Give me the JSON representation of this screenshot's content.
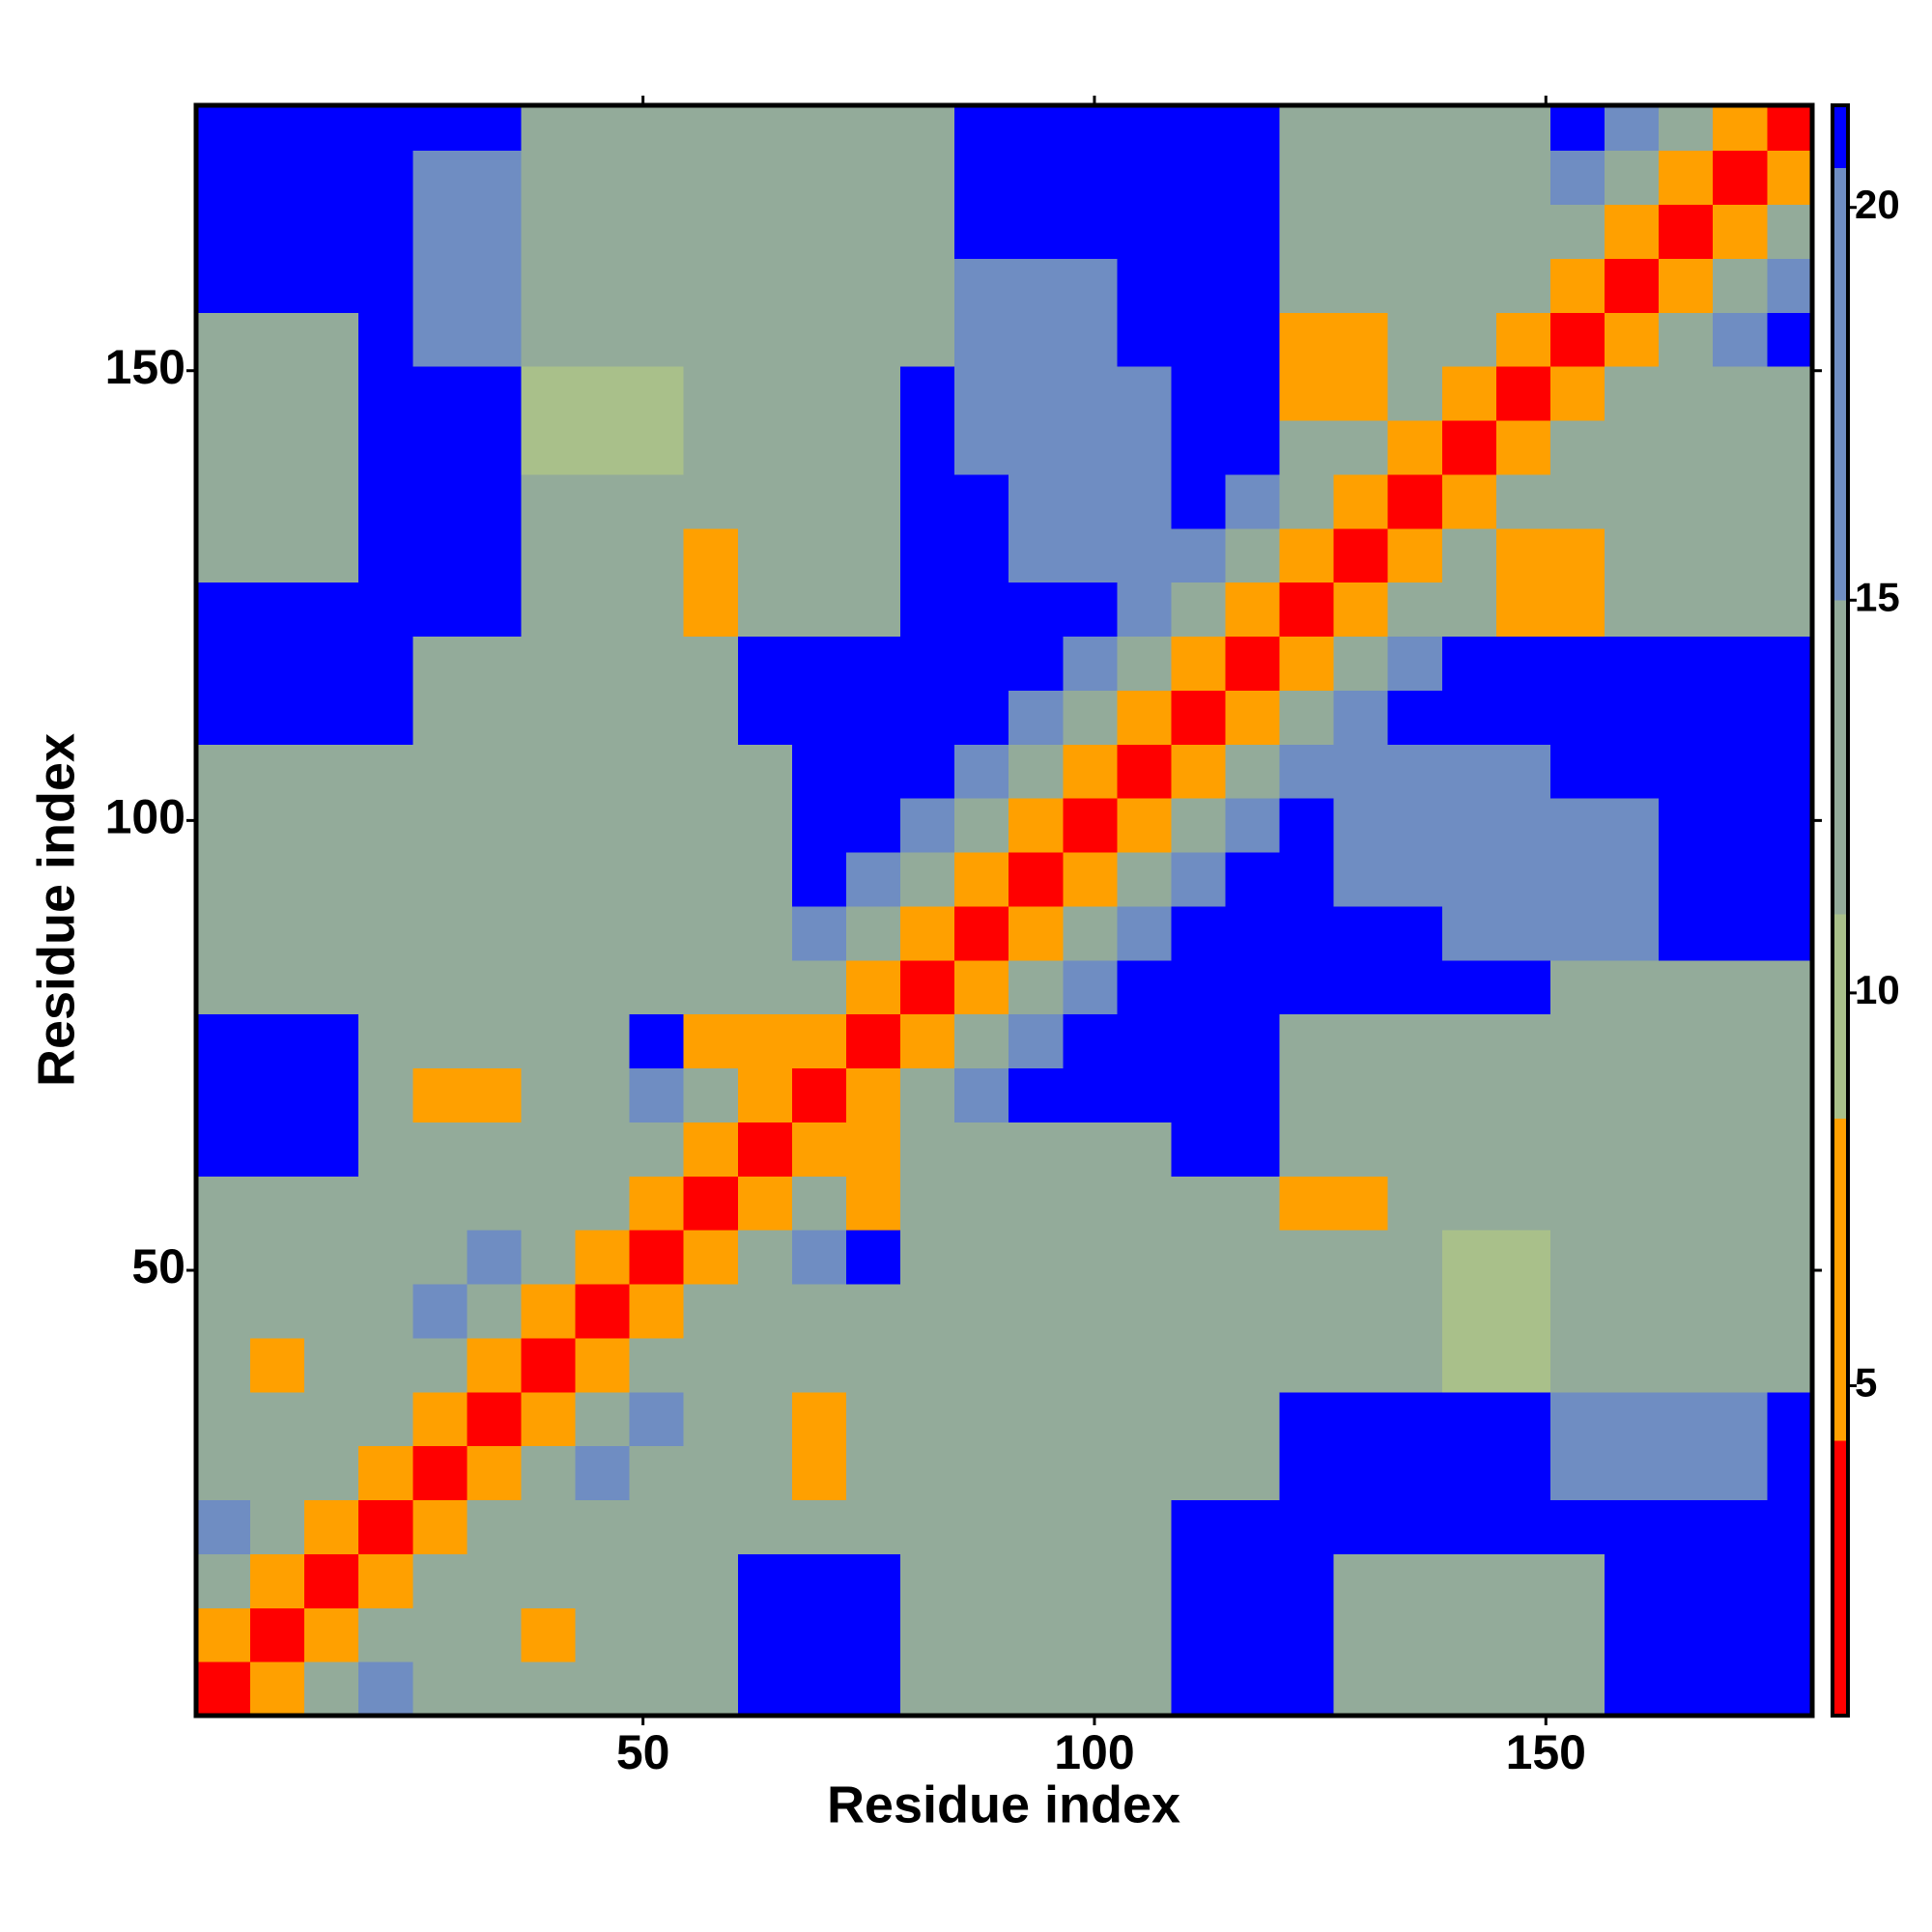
{
  "chart_data": {
    "type": "heatmap",
    "x_label": "Residue index",
    "y_label": "Residue index",
    "x": [
      3.5,
      9.5,
      15.5,
      21.5,
      27.5,
      33.5,
      39.5,
      45.5,
      51.5,
      57.5,
      63.5,
      69.5,
      75.5,
      81.5,
      87.5,
      93.5,
      99.5,
      105.5,
      111.5,
      117.5,
      123.5,
      129.5,
      135.5,
      141.5,
      147.5,
      153.5,
      159.5,
      165.5,
      171.5,
      177.5
    ],
    "y": [
      3.5,
      9.5,
      15.5,
      21.5,
      27.5,
      33.5,
      39.5,
      45.5,
      51.5,
      57.5,
      63.5,
      69.5,
      75.5,
      81.5,
      87.5,
      93.5,
      99.5,
      105.5,
      111.5,
      117.5,
      123.5,
      129.5,
      135.5,
      141.5,
      147.5,
      153.5,
      159.5,
      165.5,
      171.5,
      177.5
    ],
    "z": [
      [
        2,
        6,
        12,
        17,
        14,
        14,
        14,
        14,
        14,
        14,
        21,
        21,
        21,
        15,
        15,
        15,
        15,
        15,
        21,
        21,
        21,
        15,
        15,
        15,
        15,
        15,
        21,
        21,
        21,
        21
      ],
      [
        6,
        2,
        6,
        12,
        14,
        14,
        8,
        14,
        14,
        14,
        21,
        21,
        21,
        15,
        15,
        15,
        15,
        15,
        21,
        21,
        21,
        15,
        15,
        15,
        15,
        15,
        21,
        21,
        21,
        21
      ],
      [
        12,
        6,
        2,
        6,
        12,
        14,
        14,
        14,
        14,
        14,
        21,
        21,
        21,
        15,
        15,
        15,
        15,
        15,
        21,
        21,
        21,
        15,
        15,
        15,
        15,
        15,
        21,
        21,
        21,
        21
      ],
      [
        17,
        12,
        6,
        2,
        6,
        12,
        14,
        14,
        14,
        14,
        14,
        14,
        14,
        15,
        15,
        15,
        15,
        15,
        21,
        21,
        21,
        21,
        21,
        21,
        21,
        21,
        21,
        21,
        21,
        21
      ],
      [
        14,
        14,
        12,
        6,
        2,
        6,
        12,
        17,
        14,
        13,
        13,
        7,
        13,
        15,
        15,
        15,
        15,
        15,
        15,
        15,
        21,
        21,
        21,
        21,
        21,
        18,
        18,
        18,
        18,
        21
      ],
      [
        14,
        14,
        14,
        12,
        6,
        2,
        6,
        12,
        17,
        13,
        13,
        8,
        13,
        15,
        15,
        15,
        15,
        15,
        15,
        15,
        21,
        21,
        21,
        21,
        21,
        18,
        18,
        18,
        18,
        21
      ],
      [
        14,
        8,
        14,
        14,
        12,
        6,
        2,
        6,
        12,
        13,
        13,
        13,
        13,
        15,
        15,
        15,
        14,
        14,
        14,
        14,
        14,
        14,
        14,
        10,
        10,
        14,
        14,
        14,
        14,
        14
      ],
      [
        14,
        14,
        14,
        14,
        17,
        12,
        6,
        2,
        6,
        12,
        13,
        13,
        13,
        15,
        15,
        15,
        14,
        14,
        14,
        14,
        14,
        14,
        14,
        10,
        10,
        14,
        14,
        14,
        14,
        14
      ],
      [
        14,
        14,
        14,
        14,
        14,
        17,
        12,
        6,
        2,
        6,
        12,
        17,
        21,
        15,
        15,
        15,
        14,
        14,
        14,
        14,
        14,
        14,
        14,
        10,
        10,
        14,
        14,
        14,
        14,
        14
      ],
      [
        14,
        14,
        14,
        14,
        13,
        13,
        13,
        12,
        6,
        2,
        6,
        12,
        7,
        15,
        15,
        15,
        14,
        14,
        14,
        14,
        7,
        7,
        14,
        14,
        14,
        14,
        14,
        14,
        14,
        14
      ],
      [
        21,
        21,
        21,
        14,
        13,
        13,
        13,
        13,
        12,
        6,
        2,
        6,
        7,
        15,
        15,
        15,
        15,
        15,
        21,
        21,
        15,
        15,
        15,
        15,
        15,
        15,
        15,
        15,
        15,
        15
      ],
      [
        21,
        21,
        21,
        14,
        7,
        8,
        13,
        13,
        17,
        12,
        6,
        2,
        6,
        12,
        17,
        21,
        21,
        21,
        21,
        21,
        15,
        15,
        15,
        15,
        15,
        15,
        15,
        15,
        15,
        15
      ],
      [
        21,
        21,
        21,
        14,
        13,
        13,
        13,
        13,
        21,
        7,
        7,
        6,
        2,
        6,
        12,
        17,
        21,
        21,
        21,
        21,
        15,
        15,
        15,
        15,
        15,
        15,
        15,
        15,
        15,
        15
      ],
      [
        15,
        15,
        15,
        15,
        15,
        15,
        15,
        15,
        15,
        15,
        15,
        12,
        6,
        2,
        6,
        12,
        17,
        21,
        21,
        21,
        21,
        21,
        21,
        21,
        21,
        15,
        15,
        15,
        15,
        15
      ],
      [
        15,
        15,
        15,
        15,
        15,
        15,
        15,
        15,
        15,
        15,
        15,
        17,
        12,
        6,
        2,
        6,
        12,
        17,
        21,
        21,
        21,
        21,
        21,
        16,
        16,
        16,
        16,
        21,
        21,
        21
      ],
      [
        15,
        15,
        15,
        15,
        15,
        15,
        15,
        15,
        15,
        15,
        15,
        21,
        17,
        12,
        6,
        2,
        6,
        12,
        17,
        21,
        21,
        16,
        16,
        16,
        16,
        16,
        16,
        21,
        21,
        21
      ],
      [
        15,
        15,
        15,
        15,
        15,
        15,
        14,
        14,
        14,
        14,
        15,
        21,
        21,
        17,
        12,
        6,
        2,
        6,
        12,
        17,
        21,
        16,
        16,
        16,
        16,
        16,
        16,
        21,
        21,
        21
      ],
      [
        15,
        15,
        15,
        15,
        15,
        15,
        14,
        14,
        14,
        14,
        15,
        21,
        21,
        21,
        17,
        12,
        6,
        2,
        6,
        12,
        17,
        16,
        16,
        16,
        16,
        21,
        21,
        21,
        21,
        21
      ],
      [
        21,
        21,
        21,
        21,
        15,
        15,
        14,
        14,
        14,
        14,
        21,
        21,
        21,
        21,
        21,
        17,
        12,
        6,
        2,
        6,
        12,
        17,
        21,
        21,
        21,
        21,
        21,
        21,
        21,
        21
      ],
      [
        21,
        21,
        21,
        21,
        15,
        15,
        14,
        14,
        14,
        14,
        21,
        21,
        21,
        21,
        21,
        21,
        17,
        12,
        6,
        2,
        6,
        12,
        17,
        21,
        21,
        21,
        21,
        21,
        21,
        21
      ],
      [
        21,
        21,
        21,
        21,
        21,
        21,
        14,
        14,
        14,
        7,
        15,
        15,
        15,
        21,
        21,
        21,
        21,
        17,
        12,
        6,
        2,
        6,
        12,
        13,
        7,
        7,
        13,
        13,
        13,
        13
      ],
      [
        15,
        15,
        15,
        21,
        21,
        21,
        14,
        14,
        14,
        7,
        15,
        15,
        15,
        21,
        21,
        16,
        16,
        16,
        17,
        12,
        6,
        2,
        6,
        12,
        7,
        7,
        13,
        13,
        13,
        13
      ],
      [
        15,
        15,
        15,
        21,
        21,
        21,
        14,
        14,
        14,
        14,
        15,
        15,
        15,
        21,
        21,
        16,
        16,
        16,
        21,
        17,
        12,
        6,
        2,
        6,
        12,
        13,
        13,
        13,
        13,
        13
      ],
      [
        15,
        15,
        15,
        21,
        21,
        21,
        10,
        10,
        10,
        14,
        15,
        15,
        15,
        21,
        16,
        16,
        16,
        16,
        21,
        21,
        13,
        12,
        6,
        2,
        6,
        12,
        14,
        14,
        14,
        14
      ],
      [
        15,
        15,
        15,
        21,
        21,
        21,
        10,
        10,
        10,
        14,
        15,
        15,
        15,
        21,
        16,
        16,
        16,
        16,
        21,
        21,
        7,
        7,
        12,
        6,
        2,
        6,
        12,
        14,
        14,
        14
      ],
      [
        15,
        15,
        15,
        21,
        18,
        18,
        14,
        14,
        14,
        14,
        15,
        15,
        15,
        15,
        16,
        16,
        16,
        21,
        21,
        21,
        7,
        7,
        13,
        12,
        6,
        2,
        6,
        12,
        17,
        21
      ],
      [
        21,
        21,
        21,
        21,
        18,
        18,
        14,
        14,
        14,
        14,
        15,
        15,
        15,
        15,
        16,
        16,
        16,
        21,
        21,
        21,
        13,
        13,
        13,
        14,
        12,
        6,
        2,
        6,
        12,
        17
      ],
      [
        21,
        21,
        21,
        21,
        18,
        18,
        14,
        14,
        14,
        14,
        15,
        15,
        15,
        15,
        21,
        21,
        21,
        21,
        21,
        21,
        13,
        13,
        13,
        14,
        14,
        12,
        6,
        2,
        6,
        12
      ],
      [
        21,
        21,
        21,
        21,
        18,
        18,
        14,
        14,
        14,
        14,
        15,
        15,
        15,
        15,
        21,
        21,
        21,
        21,
        21,
        21,
        13,
        13,
        13,
        14,
        14,
        17,
        12,
        6,
        2,
        6
      ],
      [
        21,
        21,
        21,
        21,
        21,
        21,
        14,
        14,
        14,
        14,
        15,
        15,
        15,
        15,
        21,
        21,
        21,
        21,
        21,
        21,
        13,
        13,
        13,
        14,
        14,
        21,
        17,
        12,
        6,
        2
      ]
    ],
    "xlim": [
      0.5,
      179.5
    ],
    "ylim": [
      0.5,
      179.5
    ],
    "xticks": [
      50,
      100,
      150
    ],
    "yticks": [
      50,
      100,
      150
    ],
    "clim": [
      0.8,
      21.3
    ],
    "cticks": [
      5,
      10,
      15,
      20
    ],
    "colorscale": [
      {
        "to": 4.3,
        "color": "#ff0000"
      },
      {
        "to": 8.4,
        "color": "#ffa000"
      },
      {
        "to": 11,
        "color": "#a9c08a"
      },
      {
        "to": 15,
        "color": "#93ab9a"
      },
      {
        "to": 20.5,
        "color": "#6f8dc2"
      },
      {
        "to": 21.3,
        "color": "#0000ff"
      }
    ]
  }
}
